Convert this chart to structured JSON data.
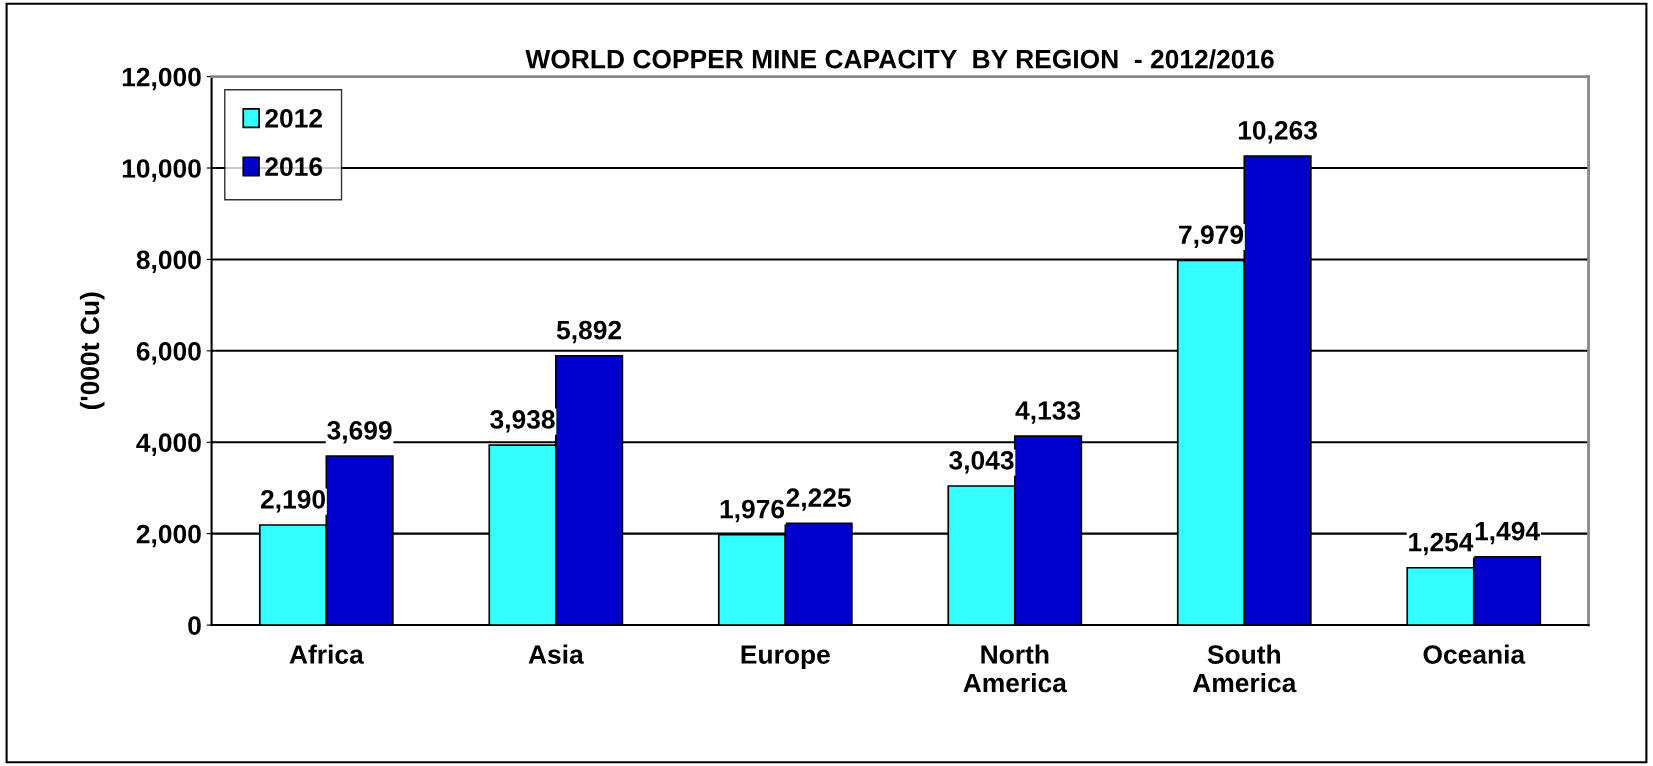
{
  "chart_data": {
    "type": "bar",
    "title": "WORLD COPPER MINE CAPACITY  BY REGION  - 2012/2016",
    "ylabel": "('000t Cu)",
    "categories": [
      "Africa",
      "Asia",
      "Europe",
      "North America",
      "South America",
      "Oceania"
    ],
    "series": [
      {
        "name": "2012",
        "color": "#33ffff",
        "values": [
          2190,
          3938,
          1976,
          3043,
          7979,
          1254
        ],
        "value_labels": [
          "2,190",
          "3,938",
          "1,976",
          "3,043",
          "7,979",
          "1,254"
        ]
      },
      {
        "name": "2016",
        "color": "#0000cc",
        "values": [
          3699,
          5892,
          2225,
          4133,
          10263,
          1494
        ],
        "value_labels": [
          "3,699",
          "5,892",
          "2,225",
          "4,133",
          "10,263",
          "1,494"
        ]
      }
    ],
    "ylim": [
      0,
      12000
    ],
    "yticks": [
      {
        "value": 0,
        "label": "0"
      },
      {
        "value": 2000,
        "label": "2,000"
      },
      {
        "value": 4000,
        "label": "4,000"
      },
      {
        "value": 6000,
        "label": "6,000"
      },
      {
        "value": 8000,
        "label": "8,000"
      },
      {
        "value": 10000,
        "label": "10,000"
      },
      {
        "value": 12000,
        "label": "12,000"
      }
    ],
    "grid": "y",
    "legend": "top left"
  }
}
